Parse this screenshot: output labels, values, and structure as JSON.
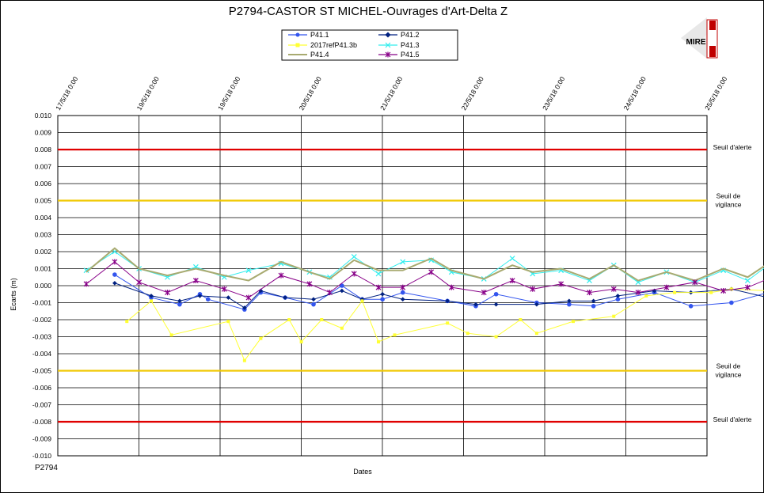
{
  "chart_data": {
    "type": "line",
    "title": "P2794-CASTOR ST MICHEL-Ouvrages d'Art-Delta Z",
    "xlabel": "Dates",
    "ylabel": "Ecarts (m)",
    "footer": "P2794",
    "logo_text": "MIRE",
    "ylim": [
      -0.01,
      0.01
    ],
    "y_ticks": [
      "0.010",
      "0.009",
      "0.008",
      "0.007",
      "0.006",
      "0.005",
      "0.004",
      "0.003",
      "0.002",
      "0.001",
      "0.000",
      "-0.001",
      "-0.002",
      "-0.003",
      "-0.004",
      "-0.005",
      "-0.006",
      "-0.007",
      "-0.008",
      "-0.009",
      "-0.010"
    ],
    "x_ticks": [
      "17/5/18 0:00",
      "19/5/18 0:00",
      "19/5/18 0:00",
      "20/5/18 0:00",
      "21/5/18 0:00",
      "22/5/18 0:00",
      "23/5/18 0:00",
      "24/5/18 0:00",
      "25/5/18 0:00"
    ],
    "grid": true,
    "legend_position": "top",
    "thresholds": [
      {
        "label": "Seuil d'alerte",
        "value": 0.008,
        "color": "#e00000"
      },
      {
        "label_lines": [
          "Seuil de",
          "vigilance"
        ],
        "value": 0.005,
        "color": "#f0c800"
      },
      {
        "label_lines": [
          "Seuil de",
          "vigilance"
        ],
        "value": -0.005,
        "color": "#f0c800"
      },
      {
        "label": "Seuil d'alerte",
        "value": -0.008,
        "color": "#e00000"
      }
    ],
    "series": [
      {
        "name": "P41.1",
        "color": "#3355ee",
        "marker": "circle",
        "x": [
          0.7,
          1.6,
          2.3,
          2.8,
          3.0,
          3.9,
          4.3,
          4.9,
          5.6,
          6.3,
          6.8,
          7.3,
          7.8,
          8.9,
          9.6,
          10.1,
          11.1,
          11.9,
          12.5,
          13.1,
          14.0,
          14.9,
          15.9,
          16.8
        ],
        "y": [
          0.00065,
          -0.0007,
          -0.0011,
          -0.0005,
          -0.0008,
          -0.0014,
          -0.0004,
          -0.0007,
          -0.0011,
          0.0,
          -0.0008,
          -0.0008,
          -0.0004,
          -0.0009,
          -0.0012,
          -0.0005,
          -0.001,
          -0.0011,
          -0.0012,
          -0.0008,
          -0.0004,
          -0.0012,
          -0.001,
          -0.0004
        ]
      },
      {
        "name": "P41.2",
        "color": "#002080",
        "marker": "diamond",
        "x": [
          0.7,
          1.6,
          2.3,
          2.8,
          3.5,
          3.9,
          4.3,
          4.9,
          5.6,
          6.3,
          6.8,
          7.3,
          7.8,
          8.9,
          9.6,
          10.1,
          11.1,
          11.9,
          12.5,
          13.1,
          14.0,
          14.9,
          15.9,
          16.8
        ],
        "y": [
          0.00015,
          -0.0006,
          -0.0009,
          -0.0006,
          -0.0007,
          -0.0013,
          -0.0003,
          -0.0007,
          -0.0008,
          -0.0003,
          -0.0008,
          -0.0005,
          -0.0008,
          -0.0009,
          -0.0011,
          -0.0011,
          -0.0011,
          -0.0009,
          -0.0009,
          -0.0006,
          -0.0003,
          -0.0004,
          -0.0002,
          -0.0007
        ]
      },
      {
        "name": "2017refP41.3b",
        "color": "#ffff33",
        "marker": "square",
        "x": [
          1.0,
          1.6,
          2.1,
          3.5,
          3.9,
          4.3,
          5.0,
          5.3,
          5.8,
          6.3,
          6.8,
          7.2,
          7.6,
          8.9,
          9.4,
          10.1,
          10.7,
          11.1,
          12.0,
          13.0,
          13.8,
          14.5,
          15.4,
          15.9,
          16.8
        ],
        "y": [
          -0.0021,
          -0.0009,
          -0.0029,
          -0.0021,
          -0.0044,
          -0.0031,
          -0.002,
          -0.0033,
          -0.002,
          -0.0025,
          -0.0009,
          -0.0033,
          -0.0029,
          -0.0022,
          -0.0028,
          -0.003,
          -0.002,
          -0.0028,
          -0.0021,
          -0.0018,
          -0.0006,
          -0.0004,
          -0.0004,
          -0.0002,
          -0.0003
        ]
      },
      {
        "name": "P41.3",
        "color": "#33eeee",
        "marker": "x",
        "x": [
          0.0,
          0.7,
          1.3,
          2.0,
          2.7,
          3.4,
          4.0,
          4.8,
          5.5,
          6.0,
          6.6,
          7.2,
          7.8,
          8.5,
          9.0,
          9.8,
          10.5,
          11.0,
          11.7,
          12.4,
          13.0,
          13.6,
          14.3,
          15.0,
          15.7,
          16.3,
          16.8
        ],
        "y": [
          0.0009,
          0.002,
          0.001,
          0.0005,
          0.0011,
          0.0005,
          0.0009,
          0.0013,
          0.0008,
          0.0005,
          0.0017,
          0.0007,
          0.0014,
          0.0015,
          0.0008,
          0.0004,
          0.0016,
          0.0007,
          0.0009,
          0.0003,
          0.0012,
          0.0002,
          0.0008,
          0.0002,
          0.0009,
          0.0003,
          0.0012
        ]
      },
      {
        "name": "P41.4",
        "color": "#a8aa70",
        "marker": "none",
        "x": [
          0.0,
          0.7,
          1.3,
          2.0,
          2.7,
          3.4,
          4.0,
          4.8,
          5.5,
          6.0,
          6.6,
          7.2,
          7.8,
          8.5,
          9.0,
          9.8,
          10.5,
          11.0,
          11.7,
          12.4,
          13.0,
          13.6,
          14.3,
          15.0,
          15.7,
          16.3,
          16.8
        ],
        "y": [
          0.0008,
          0.0022,
          0.001,
          0.0006,
          0.001,
          0.0006,
          0.0003,
          0.0014,
          0.0008,
          0.0004,
          0.0015,
          0.0009,
          0.0009,
          0.0016,
          0.0009,
          0.0004,
          0.0012,
          0.0008,
          0.001,
          0.0004,
          0.0012,
          0.0003,
          0.0008,
          0.0003,
          0.001,
          0.0005,
          0.0013
        ]
      },
      {
        "name": "P41.5",
        "color": "#880088",
        "marker": "star",
        "x": [
          0.0,
          0.7,
          1.3,
          2.0,
          2.7,
          3.4,
          4.0,
          4.8,
          5.5,
          6.0,
          6.6,
          7.2,
          7.8,
          8.5,
          9.0,
          9.8,
          10.5,
          11.0,
          11.7,
          12.4,
          13.0,
          13.6,
          14.3,
          15.0,
          15.7,
          16.3,
          16.8
        ],
        "y": [
          0.0001,
          0.0014,
          0.0002,
          -0.0004,
          0.0003,
          -0.0002,
          -0.0007,
          0.0006,
          0.0001,
          -0.0004,
          0.0007,
          -0.0001,
          -0.0001,
          0.0008,
          -0.0001,
          -0.0004,
          0.0003,
          -0.0002,
          0.0001,
          -0.0004,
          -0.0002,
          -0.0004,
          -0.0001,
          0.0002,
          -0.0003,
          -0.0001,
          0.0004
        ]
      }
    ]
  }
}
